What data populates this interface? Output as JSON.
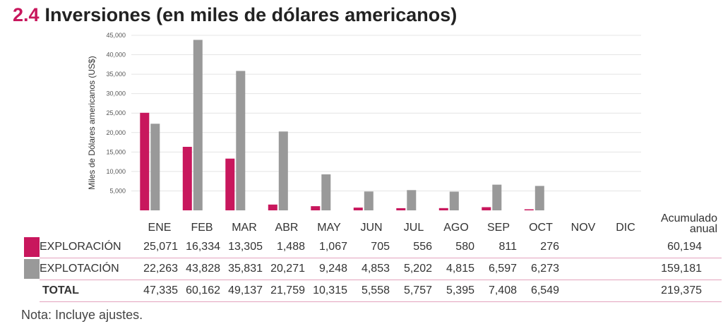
{
  "title": {
    "number": "2.4",
    "text": "Inversiones (en miles de dólares americanos)"
  },
  "chart_data": {
    "type": "bar",
    "ylabel": "Miles de Dólares  americanos (US$)",
    "ylim": [
      0,
      45000
    ],
    "yticks": [
      "5,000",
      "10,000",
      "15,000",
      "20,000",
      "25,000",
      "30,000",
      "35,000",
      "40,000",
      "45,000"
    ],
    "ytick_values": [
      5000,
      10000,
      15000,
      20000,
      25000,
      30000,
      35000,
      40000,
      45000
    ],
    "grid": true,
    "categories": [
      "ENE",
      "FEB",
      "MAR",
      "ABR",
      "MAY",
      "JUN",
      "JUL",
      "AGO",
      "SEP",
      "OCT",
      "NOV",
      "DIC"
    ],
    "series": [
      {
        "name": "EXPLORACIÓN",
        "color": "#c8175d",
        "values": [
          25071,
          16334,
          13305,
          1488,
          1067,
          705,
          556,
          580,
          811,
          276,
          null,
          null
        ]
      },
      {
        "name": "EXPLOTACIÓN",
        "color": "#999999",
        "values": [
          22263,
          43828,
          35831,
          20271,
          9248,
          4853,
          5202,
          4815,
          6597,
          6273,
          null,
          null
        ]
      }
    ]
  },
  "table": {
    "accum_header_line1": "Acumulado",
    "accum_header_line2": "anual",
    "rows": [
      {
        "label": "EXPLORACIÓN",
        "color": "#c8175d",
        "values": [
          "25,071",
          "16,334",
          "13,305",
          "1,488",
          "1,067",
          "705",
          "556",
          "580",
          "811",
          "276",
          "",
          ""
        ],
        "accum": "60,194"
      },
      {
        "label": "EXPLOTACIÓN",
        "color": "#999999",
        "values": [
          "22,263",
          "43,828",
          "35,831",
          "20,271",
          "9,248",
          "4,853",
          "5,202",
          "4,815",
          "6,597",
          "6,273",
          "",
          ""
        ],
        "accum": "159,181"
      },
      {
        "label": "TOTAL",
        "values": [
          "47,335",
          "60,162",
          "49,137",
          "21,759",
          "10,315",
          "5,558",
          "5,757",
          "5,395",
          "7,408",
          "6,549",
          "",
          ""
        ],
        "accum": "219,375"
      }
    ]
  },
  "note": "Nota: Incluye ajustes."
}
